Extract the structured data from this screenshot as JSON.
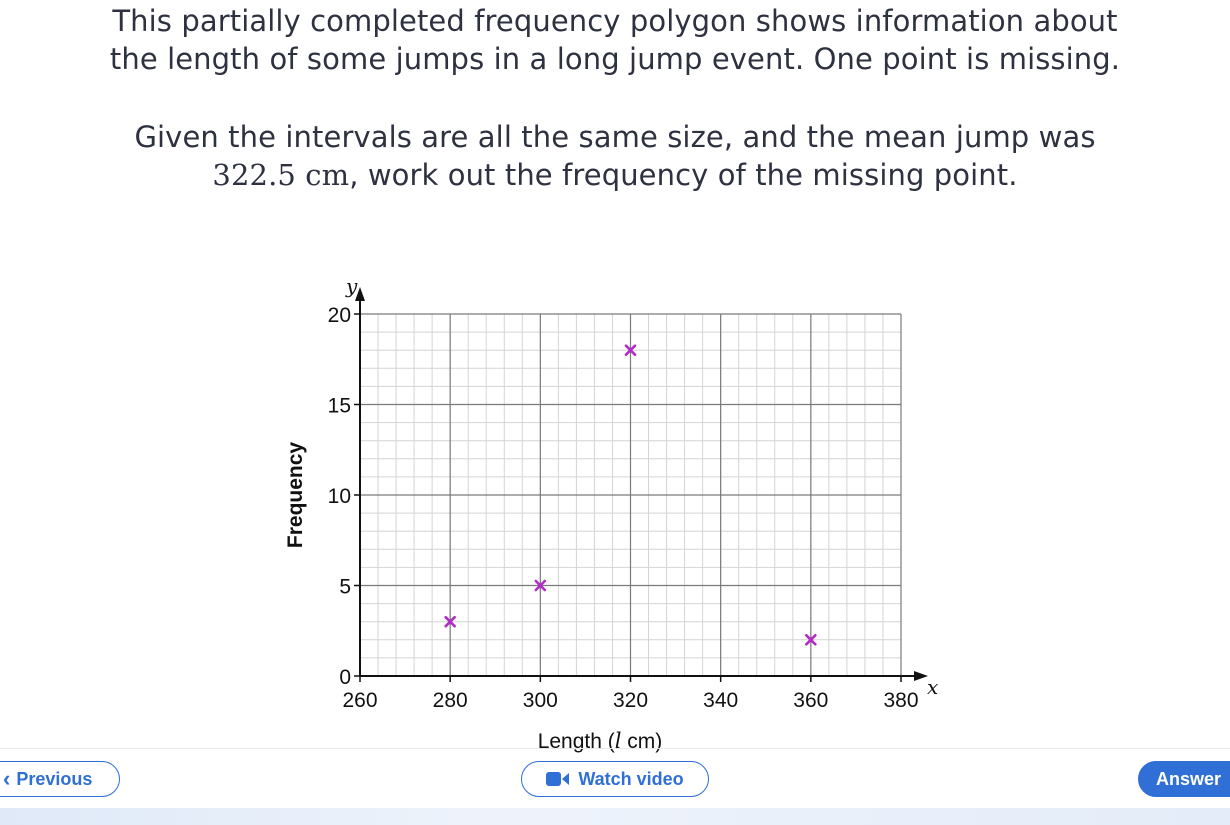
{
  "question": {
    "line1": "This partially completed frequency polygon shows information about",
    "line2": "the length of some jumps in a long jump event. One point is missing.",
    "line3": "Given the intervals are all the same size, and the mean jump was",
    "line4_math": "322.5 cm",
    "line4_rest": ", work out the frequency of the missing point."
  },
  "chart_data": {
    "type": "scatter",
    "title": "",
    "xlabel": "Length (",
    "xlabel_var": "l",
    "xlabel_unit": " cm)",
    "ylabel": "Frequency",
    "x_axis_symbol": "x",
    "y_axis_symbol": "y",
    "xlim": [
      260,
      380
    ],
    "ylim": [
      0,
      20
    ],
    "x_ticks": [
      260,
      280,
      300,
      320,
      340,
      360,
      380
    ],
    "y_ticks": [
      0,
      5,
      10,
      15,
      20
    ],
    "grid": true,
    "marker": "x",
    "marker_color": "#b12bc6",
    "points": [
      {
        "x": 280,
        "y": 3
      },
      {
        "x": 300,
        "y": 5
      },
      {
        "x": 320,
        "y": 18
      },
      {
        "x": 360,
        "y": 2
      }
    ]
  },
  "nav": {
    "previous_label": "Previous",
    "previous_icon": "chevron-left-icon",
    "video_label": "Watch video",
    "video_icon": "video-camera-icon",
    "answer_label": "Answer"
  },
  "colors": {
    "accent": "#2f6fd6",
    "grid_minor": "#d4d4d4",
    "grid_major": "#7a7a7a",
    "text": "#2e3240"
  }
}
